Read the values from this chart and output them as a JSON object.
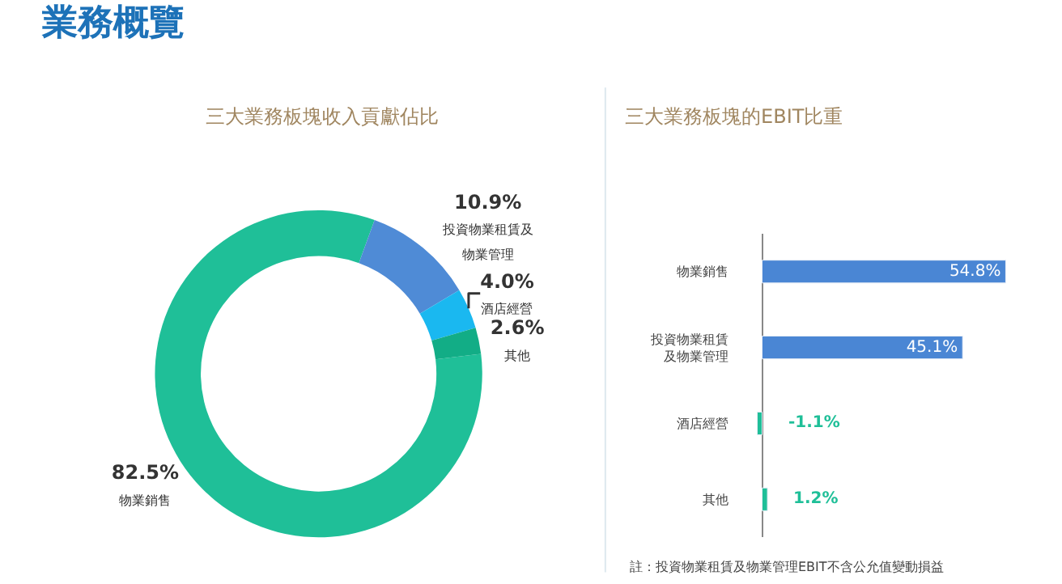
{
  "chart_data": [
    {
      "type": "donut",
      "title": "業務概覽",
      "subtitle": "三大業務板塊收入貢獻佔比",
      "categories": [
        "物業銷售",
        "投資物業租賃及物業管理",
        "酒店經營",
        "其他"
      ],
      "values": [
        82.5,
        10.9,
        4.0,
        2.6
      ],
      "colors": [
        "#1fbf98",
        "#4f8bd6",
        "#1ab8f0",
        "#12ad86"
      ],
      "value_labels": [
        "82.5%",
        "10.9%",
        "4.0%",
        "2.6%"
      ]
    },
    {
      "type": "bar",
      "orientation": "horizontal",
      "title": "三大業務板塊的EBIT比重",
      "categories": [
        "物業銷售",
        "投資物業租賃及物業管理",
        "酒店經營",
        "其他"
      ],
      "values": [
        54.8,
        45.1,
        -1.1,
        1.2
      ],
      "colors": [
        "#4a86d4",
        "#4a86d4",
        "#1fbf98",
        "#1fbf98"
      ],
      "value_labels": [
        "54.8%",
        "45.1%",
        "-1.1%",
        "1.2%"
      ],
      "annotations": [
        "註：投資物業租賃及物業管理EBIT不含公允值變動損益"
      ]
    }
  ]
}
